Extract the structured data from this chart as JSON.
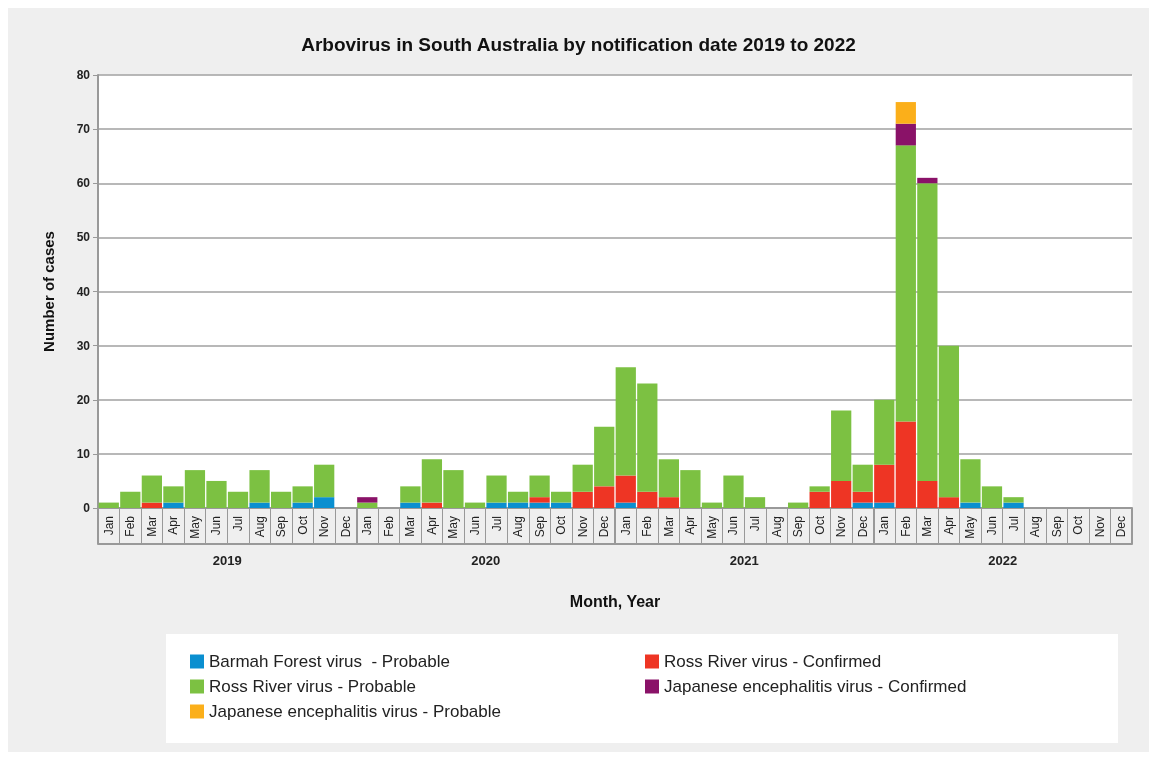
{
  "chart_data": {
    "type": "bar",
    "title": "Arbovirus in South Australia by notification date 2019 to 2022",
    "xlabel": "Month, Year",
    "ylabel": "Number of cases",
    "categories": [
      "Jan",
      "Feb",
      "Mar",
      "Apr",
      "May",
      "Jun",
      "Jul",
      "Aug",
      "Sep",
      "Oct",
      "Nov",
      "Dec",
      "Jan",
      "Feb",
      "Mar",
      "Apr",
      "May",
      "Jun",
      "Jul",
      "Aug",
      "Sep",
      "Oct",
      "Nov",
      "Dec",
      "Jan",
      "Feb",
      "Mar",
      "Apr",
      "May",
      "Jun",
      "Jul",
      "Aug",
      "Sep",
      "Oct",
      "Nov",
      "Dec",
      "Jan",
      "Feb",
      "Mar",
      "Apr",
      "May",
      "Jun",
      "Jul",
      "Aug",
      "Sep",
      "Oct",
      "Nov",
      "Dec"
    ],
    "annotations": [
      "2019",
      "2020",
      "2021",
      "2022"
    ],
    "stacked": true,
    "ylim": [
      0,
      80
    ],
    "yticks": [
      0,
      10,
      20,
      30,
      40,
      50,
      60,
      70,
      80
    ],
    "grid": "y",
    "legend": "bottom",
    "series": [
      {
        "name": "Barmah Forest virus  - Probable",
        "color": "#0a8fd0",
        "values": [
          0,
          0,
          0,
          1,
          0,
          0,
          0,
          1,
          0,
          1,
          2,
          0,
          0,
          0,
          1,
          0,
          0,
          0,
          1,
          1,
          1,
          1,
          0,
          0,
          1,
          0,
          0,
          0,
          0,
          0,
          0,
          0,
          0,
          0,
          0,
          1,
          1,
          0,
          0,
          0,
          1,
          0,
          1,
          0,
          0,
          0,
          0,
          0
        ]
      },
      {
        "name": "Ross River virus - Confirmed",
        "color": "#ee3524",
        "values": [
          0,
          0,
          1,
          0,
          0,
          0,
          0,
          0,
          0,
          0,
          0,
          0,
          0,
          0,
          0,
          1,
          0,
          0,
          0,
          0,
          1,
          0,
          3,
          4,
          5,
          3,
          2,
          0,
          0,
          0,
          0,
          0,
          0,
          3,
          5,
          2,
          7,
          16,
          5,
          2,
          0,
          0,
          0,
          0,
          0,
          0,
          0,
          0
        ]
      },
      {
        "name": "Ross River virus - Probable",
        "color": "#7cc142",
        "values": [
          1,
          3,
          5,
          3,
          7,
          5,
          3,
          6,
          3,
          3,
          6,
          0,
          1,
          0,
          3,
          8,
          7,
          1,
          5,
          2,
          4,
          2,
          5,
          11,
          20,
          20,
          7,
          7,
          1,
          6,
          2,
          0,
          1,
          1,
          13,
          5,
          12,
          51,
          55,
          28,
          8,
          4,
          1,
          0,
          0,
          0,
          0,
          0
        ]
      },
      {
        "name": "Japanese encephalitis virus - Confirmed",
        "color": "#8a1268",
        "values": [
          0,
          0,
          0,
          0,
          0,
          0,
          0,
          0,
          0,
          0,
          0,
          0,
          1,
          0,
          0,
          0,
          0,
          0,
          0,
          0,
          0,
          0,
          0,
          0,
          0,
          0,
          0,
          0,
          0,
          0,
          0,
          0,
          0,
          0,
          0,
          0,
          0,
          4,
          1,
          0,
          0,
          0,
          0,
          0,
          0,
          0,
          0,
          0
        ]
      },
      {
        "name": "Japanese encephalitis virus - Probable",
        "color": "#fbaf1a",
        "values": [
          0,
          0,
          0,
          0,
          0,
          0,
          0,
          0,
          0,
          0,
          0,
          0,
          0,
          0,
          0,
          0,
          0,
          0,
          0,
          0,
          0,
          0,
          0,
          0,
          0,
          0,
          0,
          0,
          0,
          0,
          0,
          0,
          0,
          0,
          0,
          0,
          0,
          4,
          0,
          0,
          0,
          0,
          0,
          0,
          0,
          0,
          0,
          0
        ]
      }
    ]
  }
}
